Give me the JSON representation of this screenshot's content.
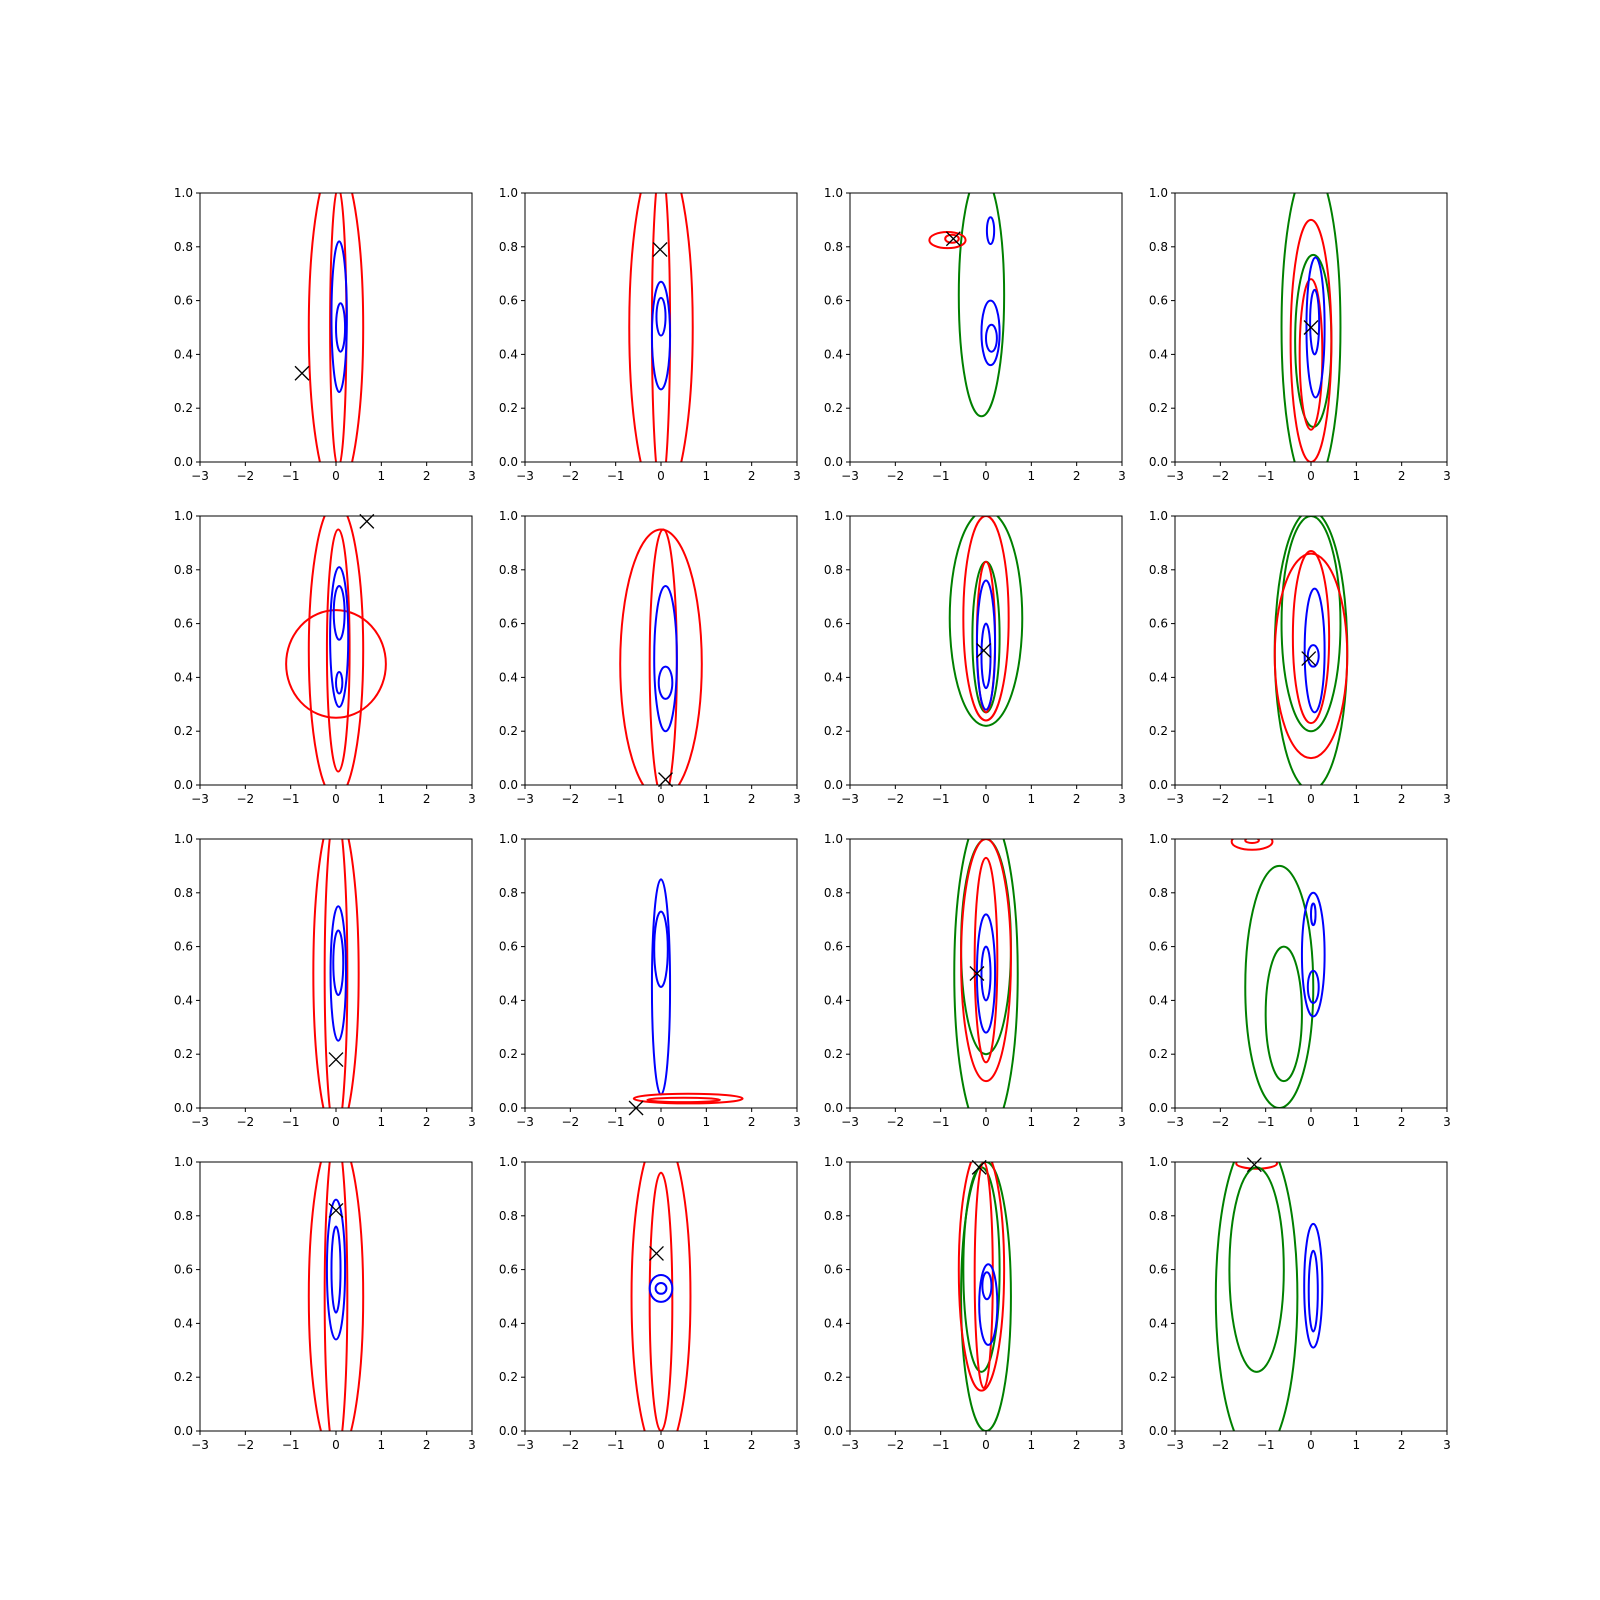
{
  "chart_data": {
    "type": "contour",
    "layout": "4x4 grid of panels",
    "xlim": [
      -3,
      3
    ],
    "ylim": [
      0,
      1
    ],
    "xticks": [
      "−3",
      "−2",
      "−1",
      "0",
      "1",
      "2",
      "3"
    ],
    "yticks": [
      "0.0",
      "0.2",
      "0.4",
      "0.6",
      "0.8",
      "1.0"
    ],
    "grid": false,
    "colors": {
      "red": "#ff0000",
      "blue": "#0000ff",
      "green": "#008000",
      "marker": "#000000"
    },
    "marker_shape": "x",
    "panels": [
      {
        "marker": [
          -0.75,
          0.33
        ],
        "contours": [
          {
            "color": "red",
            "cx": 0.0,
            "cy": 0.5,
            "rx": 0.6,
            "ry": 0.62
          },
          {
            "color": "red",
            "cx": 0.05,
            "cy": 0.5,
            "rx": 0.18,
            "ry": 0.52
          },
          {
            "color": "blue",
            "cx": 0.07,
            "cy": 0.54,
            "rx": 0.17,
            "ry": 0.28
          },
          {
            "color": "blue",
            "cx": 0.1,
            "cy": 0.5,
            "rx": 0.1,
            "ry": 0.09
          }
        ]
      },
      {
        "marker": [
          -0.02,
          0.79
        ],
        "contours": [
          {
            "color": "red",
            "cx": 0.0,
            "cy": 0.5,
            "rx": 0.7,
            "ry": 0.65
          },
          {
            "color": "red",
            "cx": 0.0,
            "cy": 0.5,
            "rx": 0.2,
            "ry": 0.6
          },
          {
            "color": "blue",
            "cx": 0.0,
            "cy": 0.47,
            "rx": 0.2,
            "ry": 0.2
          },
          {
            "color": "blue",
            "cx": 0.0,
            "cy": 0.54,
            "rx": 0.1,
            "ry": 0.07
          }
        ]
      },
      {
        "marker": [
          -0.72,
          0.83
        ],
        "contours": [
          {
            "color": "green",
            "cx": -0.1,
            "cy": 0.62,
            "rx": 0.5,
            "ry": 0.45
          },
          {
            "color": "red",
            "cx": -0.85,
            "cy": 0.825,
            "rx": 0.4,
            "ry": 0.03
          },
          {
            "color": "red",
            "cx": -0.75,
            "cy": 0.83,
            "rx": 0.15,
            "ry": 0.015
          },
          {
            "color": "blue",
            "cx": 0.1,
            "cy": 0.48,
            "rx": 0.2,
            "ry": 0.12
          },
          {
            "color": "blue",
            "cx": 0.12,
            "cy": 0.46,
            "rx": 0.12,
            "ry": 0.05
          },
          {
            "color": "blue",
            "cx": 0.1,
            "cy": 0.86,
            "rx": 0.08,
            "ry": 0.05
          }
        ]
      },
      {
        "marker": [
          0.0,
          0.5
        ],
        "contours": [
          {
            "color": "green",
            "cx": 0.0,
            "cy": 0.5,
            "rx": 0.65,
            "ry": 0.6
          },
          {
            "color": "green",
            "cx": 0.05,
            "cy": 0.45,
            "rx": 0.4,
            "ry": 0.32
          },
          {
            "color": "red",
            "cx": 0.0,
            "cy": 0.45,
            "rx": 0.45,
            "ry": 0.45
          },
          {
            "color": "red",
            "cx": 0.0,
            "cy": 0.4,
            "rx": 0.25,
            "ry": 0.28
          },
          {
            "color": "blue",
            "cx": 0.1,
            "cy": 0.5,
            "rx": 0.2,
            "ry": 0.26
          },
          {
            "color": "blue",
            "cx": 0.08,
            "cy": 0.52,
            "rx": 0.1,
            "ry": 0.12
          }
        ]
      },
      {
        "marker": [
          0.68,
          0.98
        ],
        "contours": [
          {
            "color": "red",
            "cx": 0.0,
            "cy": 0.45,
            "rx": 1.1,
            "ry": 0.2
          },
          {
            "color": "red",
            "cx": 0.0,
            "cy": 0.5,
            "rx": 0.6,
            "ry": 0.55
          },
          {
            "color": "red",
            "cx": 0.05,
            "cy": 0.5,
            "rx": 0.25,
            "ry": 0.45
          },
          {
            "color": "blue",
            "cx": 0.07,
            "cy": 0.55,
            "rx": 0.2,
            "ry": 0.26
          },
          {
            "color": "blue",
            "cx": 0.07,
            "cy": 0.64,
            "rx": 0.12,
            "ry": 0.1
          },
          {
            "color": "blue",
            "cx": 0.07,
            "cy": 0.38,
            "rx": 0.07,
            "ry": 0.04
          }
        ]
      },
      {
        "marker": [
          0.1,
          0.02
        ],
        "contours": [
          {
            "color": "red",
            "cx": 0.0,
            "cy": 0.45,
            "rx": 0.9,
            "ry": 0.5
          },
          {
            "color": "red",
            "cx": 0.05,
            "cy": 0.45,
            "rx": 0.3,
            "ry": 0.5
          },
          {
            "color": "blue",
            "cx": 0.1,
            "cy": 0.47,
            "rx": 0.25,
            "ry": 0.27
          },
          {
            "color": "blue",
            "cx": 0.1,
            "cy": 0.38,
            "rx": 0.15,
            "ry": 0.06
          }
        ]
      },
      {
        "marker": [
          -0.05,
          0.5
        ],
        "contours": [
          {
            "color": "green",
            "cx": 0.0,
            "cy": 0.62,
            "rx": 0.8,
            "ry": 0.4
          },
          {
            "color": "red",
            "cx": 0.0,
            "cy": 0.62,
            "rx": 0.5,
            "ry": 0.38
          },
          {
            "color": "green",
            "cx": 0.0,
            "cy": 0.55,
            "rx": 0.3,
            "ry": 0.28
          },
          {
            "color": "red",
            "cx": 0.0,
            "cy": 0.55,
            "rx": 0.2,
            "ry": 0.28
          },
          {
            "color": "blue",
            "cx": 0.0,
            "cy": 0.52,
            "rx": 0.2,
            "ry": 0.24
          },
          {
            "color": "blue",
            "cx": 0.0,
            "cy": 0.48,
            "rx": 0.1,
            "ry": 0.12
          }
        ]
      },
      {
        "marker": [
          -0.05,
          0.47
        ],
        "contours": [
          {
            "color": "green",
            "cx": 0.0,
            "cy": 0.5,
            "rx": 0.8,
            "ry": 0.52
          },
          {
            "color": "green",
            "cx": 0.0,
            "cy": 0.6,
            "rx": 0.65,
            "ry": 0.4
          },
          {
            "color": "red",
            "cx": 0.0,
            "cy": 0.48,
            "rx": 0.8,
            "ry": 0.38
          },
          {
            "color": "red",
            "cx": 0.0,
            "cy": 0.55,
            "rx": 0.4,
            "ry": 0.32
          },
          {
            "color": "blue",
            "cx": 0.08,
            "cy": 0.5,
            "rx": 0.22,
            "ry": 0.23
          },
          {
            "color": "blue",
            "cx": 0.05,
            "cy": 0.48,
            "rx": 0.12,
            "ry": 0.04
          }
        ]
      },
      {
        "marker": [
          0.0,
          0.18
        ],
        "contours": [
          {
            "color": "red",
            "cx": 0.0,
            "cy": 0.5,
            "rx": 0.5,
            "ry": 0.6
          },
          {
            "color": "red",
            "cx": 0.0,
            "cy": 0.5,
            "rx": 0.25,
            "ry": 0.6
          },
          {
            "color": "blue",
            "cx": 0.05,
            "cy": 0.5,
            "rx": 0.17,
            "ry": 0.25
          },
          {
            "color": "blue",
            "cx": 0.05,
            "cy": 0.54,
            "rx": 0.11,
            "ry": 0.12
          }
        ]
      },
      {
        "marker": [
          -0.55,
          0.0
        ],
        "contours": [
          {
            "color": "blue",
            "cx": 0.0,
            "cy": 0.45,
            "rx": 0.2,
            "ry": 0.4
          },
          {
            "color": "blue",
            "cx": 0.0,
            "cy": 0.59,
            "rx": 0.15,
            "ry": 0.14
          },
          {
            "color": "red",
            "cx": 0.6,
            "cy": 0.035,
            "rx": 1.2,
            "ry": 0.018
          },
          {
            "color": "red",
            "cx": 0.5,
            "cy": 0.03,
            "rx": 0.8,
            "ry": 0.008
          }
        ]
      },
      {
        "marker": [
          -0.2,
          0.5
        ],
        "contours": [
          {
            "color": "green",
            "cx": 0.0,
            "cy": 0.5,
            "rx": 0.7,
            "ry": 0.6
          },
          {
            "color": "green",
            "cx": 0.0,
            "cy": 0.6,
            "rx": 0.55,
            "ry": 0.4
          },
          {
            "color": "red",
            "cx": 0.0,
            "cy": 0.55,
            "rx": 0.55,
            "ry": 0.45
          },
          {
            "color": "red",
            "cx": 0.0,
            "cy": 0.55,
            "rx": 0.25,
            "ry": 0.38
          },
          {
            "color": "blue",
            "cx": 0.0,
            "cy": 0.5,
            "rx": 0.2,
            "ry": 0.22
          },
          {
            "color": "blue",
            "cx": 0.0,
            "cy": 0.5,
            "rx": 0.1,
            "ry": 0.1
          }
        ]
      },
      {
        "marker": null,
        "contours": [
          {
            "color": "red",
            "cx": -1.3,
            "cy": 0.99,
            "rx": 0.45,
            "ry": 0.03
          },
          {
            "color": "red",
            "cx": -1.3,
            "cy": 0.995,
            "rx": 0.15,
            "ry": 0.01
          },
          {
            "color": "green",
            "cx": -0.7,
            "cy": 0.45,
            "rx": 0.75,
            "ry": 0.45
          },
          {
            "color": "green",
            "cx": -0.6,
            "cy": 0.35,
            "rx": 0.4,
            "ry": 0.25
          },
          {
            "color": "blue",
            "cx": 0.05,
            "cy": 0.57,
            "rx": 0.25,
            "ry": 0.23
          },
          {
            "color": "blue",
            "cx": 0.05,
            "cy": 0.45,
            "rx": 0.12,
            "ry": 0.06
          },
          {
            "color": "blue",
            "cx": 0.05,
            "cy": 0.72,
            "rx": 0.05,
            "ry": 0.04
          }
        ]
      },
      {
        "marker": [
          0.0,
          0.82
        ],
        "contours": [
          {
            "color": "red",
            "cx": 0.0,
            "cy": 0.5,
            "rx": 0.6,
            "ry": 0.6
          },
          {
            "color": "red",
            "cx": 0.0,
            "cy": 0.5,
            "rx": 0.25,
            "ry": 0.6
          },
          {
            "color": "blue",
            "cx": 0.0,
            "cy": 0.6,
            "rx": 0.2,
            "ry": 0.26
          },
          {
            "color": "blue",
            "cx": 0.0,
            "cy": 0.6,
            "rx": 0.1,
            "ry": 0.16
          }
        ]
      },
      {
        "marker": [
          -0.1,
          0.66
        ],
        "contours": [
          {
            "color": "red",
            "cx": 0.0,
            "cy": 0.5,
            "rx": 0.65,
            "ry": 0.6
          },
          {
            "color": "red",
            "cx": 0.0,
            "cy": 0.48,
            "rx": 0.25,
            "ry": 0.48
          },
          {
            "color": "blue",
            "cx": 0.0,
            "cy": 0.53,
            "rx": 0.25,
            "ry": 0.05
          },
          {
            "color": "blue",
            "cx": 0.0,
            "cy": 0.53,
            "rx": 0.12,
            "ry": 0.02
          }
        ]
      },
      {
        "marker": [
          -0.15,
          0.98
        ],
        "contours": [
          {
            "color": "green",
            "cx": 0.0,
            "cy": 0.5,
            "rx": 0.55,
            "ry": 0.5
          },
          {
            "color": "green",
            "cx": -0.1,
            "cy": 0.6,
            "rx": 0.4,
            "ry": 0.38
          },
          {
            "color": "red",
            "cx": -0.1,
            "cy": 0.6,
            "rx": 0.5,
            "ry": 0.45
          },
          {
            "color": "red",
            "cx": -0.05,
            "cy": 0.58,
            "rx": 0.2,
            "ry": 0.42
          },
          {
            "color": "blue",
            "cx": 0.05,
            "cy": 0.47,
            "rx": 0.2,
            "ry": 0.15
          },
          {
            "color": "blue",
            "cx": 0.02,
            "cy": 0.54,
            "rx": 0.1,
            "ry": 0.05
          }
        ]
      },
      {
        "marker": [
          -1.25,
          0.99
        ],
        "contours": [
          {
            "color": "red",
            "cx": -1.2,
            "cy": 0.995,
            "rx": 0.45,
            "ry": 0.02
          },
          {
            "color": "green",
            "cx": -1.2,
            "cy": 0.5,
            "rx": 0.9,
            "ry": 0.6
          },
          {
            "color": "green",
            "cx": -1.2,
            "cy": 0.6,
            "rx": 0.6,
            "ry": 0.38
          },
          {
            "color": "blue",
            "cx": 0.05,
            "cy": 0.54,
            "rx": 0.2,
            "ry": 0.23
          },
          {
            "color": "blue",
            "cx": 0.05,
            "cy": 0.52,
            "rx": 0.1,
            "ry": 0.15
          }
        ]
      }
    ]
  }
}
